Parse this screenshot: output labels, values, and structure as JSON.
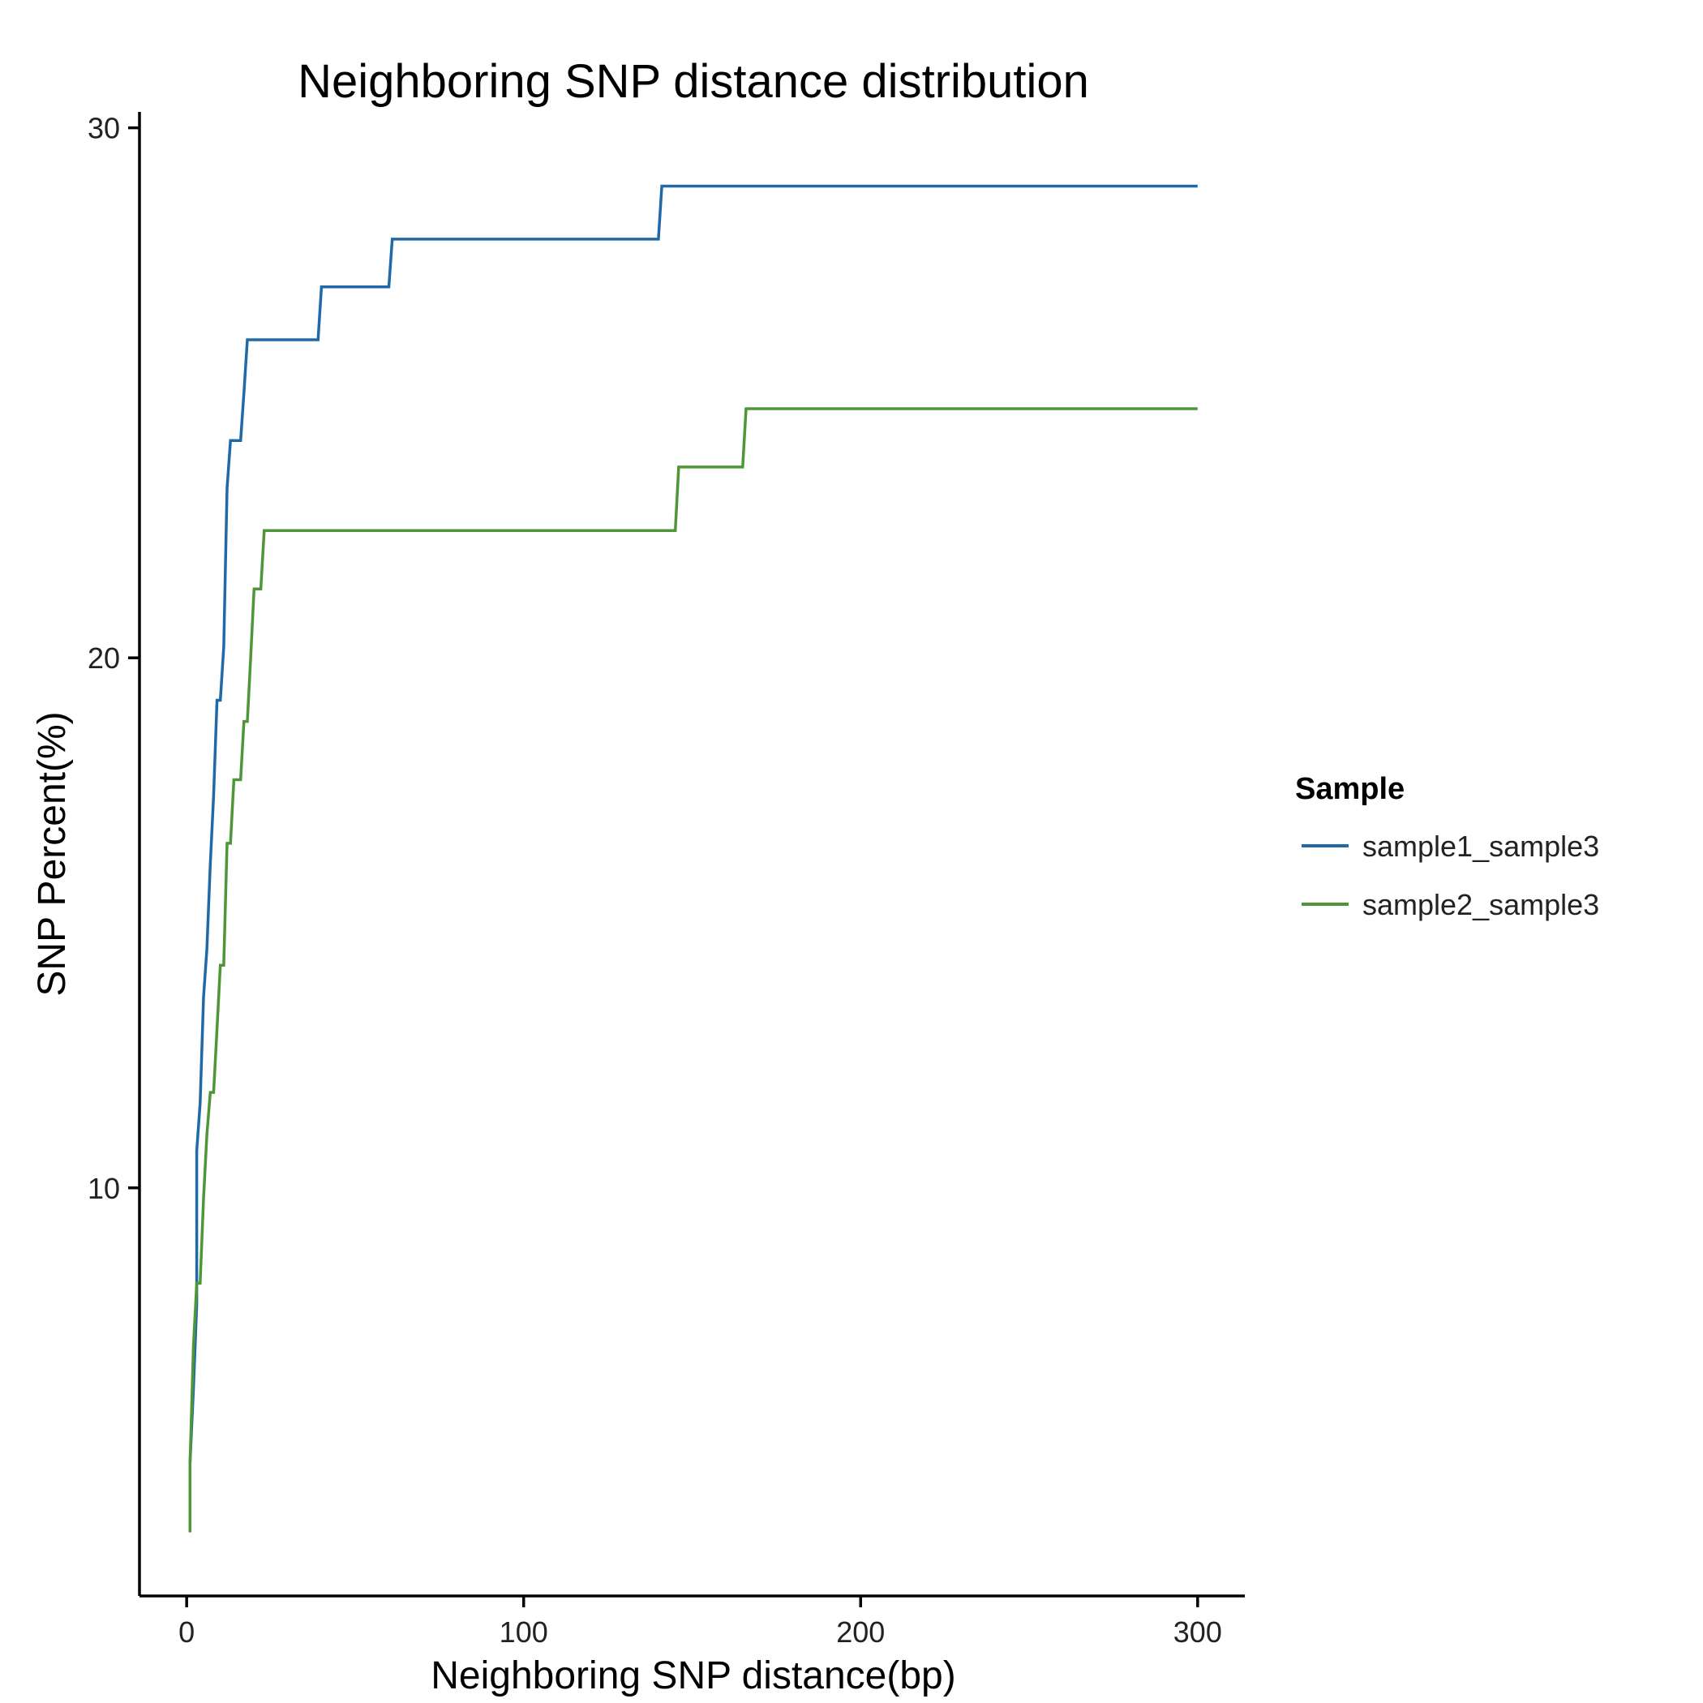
{
  "chart_data": {
    "type": "line",
    "title": "Neighboring SNP distance distribution",
    "xlabel": "Neighboring SNP distance(bp)",
    "ylabel": "SNP Percent(%)",
    "xlim": [
      -14,
      314
    ],
    "ylim": [
      2.3,
      30.3
    ],
    "xticks": [
      0,
      100,
      200,
      300
    ],
    "yticks": [
      10,
      20,
      30
    ],
    "grid": false,
    "legend": {
      "title": "Sample",
      "position": "right"
    },
    "series": [
      {
        "name": "sample1_sample3",
        "color": "#1F69A8",
        "x": [
          1,
          2,
          3,
          3,
          4,
          5,
          6,
          7,
          8,
          9,
          10,
          11,
          12,
          13,
          14,
          16,
          17,
          18,
          39,
          40,
          60,
          61,
          140,
          141,
          300
        ],
        "y": [
          4.8,
          6.2,
          7.8,
          10.7,
          11.6,
          13.6,
          14.5,
          16.1,
          17.4,
          19.2,
          19.2,
          20.2,
          23.2,
          24.1,
          24.1,
          24.1,
          25.0,
          26.0,
          26.0,
          27.0,
          27.0,
          27.9,
          27.9,
          28.9,
          28.9
        ]
      },
      {
        "name": "sample2_sample3",
        "color": "#4F9638",
        "x": [
          1,
          1,
          2,
          3,
          4,
          5,
          6,
          7,
          8,
          9,
          10,
          11,
          12,
          13,
          14,
          15,
          16,
          17,
          18,
          19,
          20,
          21,
          22,
          23,
          24,
          145,
          146,
          165,
          166,
          300
        ],
        "y": [
          3.5,
          4.8,
          7.0,
          8.2,
          8.2,
          9.8,
          11.0,
          11.8,
          11.8,
          13.0,
          14.2,
          14.2,
          16.5,
          16.5,
          17.7,
          17.7,
          17.7,
          18.8,
          18.8,
          20.0,
          21.3,
          21.3,
          21.3,
          22.4,
          22.4,
          22.4,
          23.6,
          23.6,
          24.7,
          24.7
        ]
      }
    ]
  }
}
